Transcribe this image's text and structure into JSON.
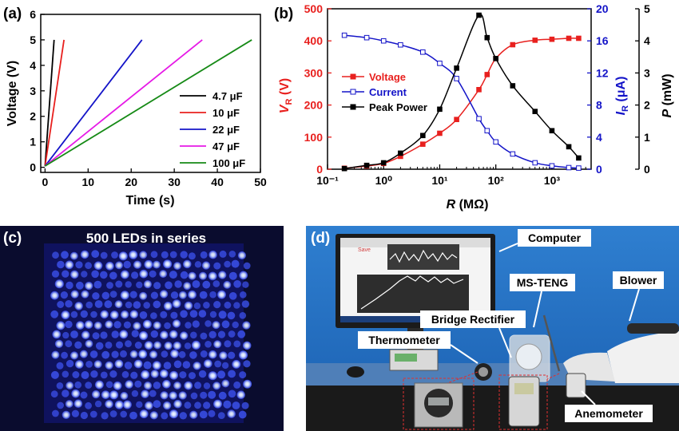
{
  "panels": {
    "a": "(a)",
    "b": "(b)",
    "c": "(c)",
    "d": "(d)"
  },
  "chart_data": [
    {
      "type": "line",
      "panel": "(a)",
      "xlabel": "Time (s)",
      "ylabel": "Voltage (V)",
      "xlim": [
        -1,
        50
      ],
      "ylim": [
        -0.2,
        6
      ],
      "xticks": [
        "0",
        "10",
        "20",
        "30",
        "40",
        "50"
      ],
      "yticks": [
        "0",
        "1",
        "2",
        "3",
        "4",
        "5",
        "6"
      ],
      "legend_position": "bottom-right",
      "series": [
        {
          "name": "4.7 μF",
          "color": "#000000",
          "x": [
            0,
            2.1
          ],
          "y": [
            0.05,
            5.0
          ]
        },
        {
          "name": "10 μF",
          "color": "#e8201e",
          "x": [
            0,
            4.4
          ],
          "y": [
            0.05,
            5.0
          ]
        },
        {
          "name": "22 μF",
          "color": "#1414c8",
          "x": [
            0,
            22.5
          ],
          "y": [
            0.05,
            5.0
          ]
        },
        {
          "name": "47 μF",
          "color": "#e619e6",
          "x": [
            0,
            36.5
          ],
          "y": [
            0.05,
            5.0
          ]
        },
        {
          "name": "100 μF",
          "color": "#168a16",
          "x": [
            0,
            48
          ],
          "y": [
            0.05,
            5.0
          ]
        }
      ]
    },
    {
      "type": "line",
      "panel": "(b)",
      "xlabel": "R (MΩ)",
      "xscale": "log",
      "xlim": [
        0.1,
        5000
      ],
      "xticks": [
        "10⁻¹",
        "10⁰",
        "10¹",
        "10²",
        "10³"
      ],
      "y_axes": [
        {
          "label": "V_R (V)",
          "color": "#e8201e",
          "lim": [
            0,
            500
          ],
          "ticks": [
            "0",
            "100",
            "200",
            "300",
            "400",
            "500"
          ]
        },
        {
          "label": "I_R (μA)",
          "color": "#1414c8",
          "lim": [
            0,
            20
          ],
          "ticks": [
            "0",
            "4",
            "8",
            "12",
            "16",
            "20"
          ]
        },
        {
          "label": "P (mW)",
          "color": "#000000",
          "lim": [
            0,
            5
          ],
          "ticks": [
            "0",
            "1",
            "2",
            "3",
            "4",
            "5"
          ]
        }
      ],
      "legend_position": "middle-left",
      "x": [
        0.2,
        0.5,
        1,
        2,
        5,
        10,
        20,
        50,
        70,
        100,
        200,
        500,
        1000,
        2000,
        3000
      ],
      "series": [
        {
          "name": "Voltage",
          "axis": 0,
          "color": "#e8201e",
          "marker": "filled-square",
          "values": [
            3,
            10,
            18,
            40,
            78,
            112,
            155,
            248,
            295,
            345,
            388,
            402,
            405,
            408,
            408
          ]
        },
        {
          "name": "Current",
          "axis": 1,
          "color": "#1414c8",
          "marker": "open-square",
          "values": [
            16.7,
            16.4,
            16.0,
            15.5,
            14.6,
            13.2,
            11.3,
            6.3,
            4.8,
            3.4,
            1.9,
            0.8,
            0.42,
            0.2,
            0.14
          ]
        },
        {
          "name": "Peak Power",
          "axis": 2,
          "color": "#000000",
          "marker": "filled-square",
          "values": [
            0.02,
            0.12,
            0.2,
            0.5,
            1.05,
            1.87,
            3.15,
            4.8,
            4.1,
            3.45,
            2.6,
            1.8,
            1.2,
            0.7,
            0.35
          ]
        }
      ]
    }
  ],
  "photo_c": {
    "title": "500 LEDs in series"
  },
  "photo_d": {
    "labels": {
      "computer": "Computer",
      "msteng": "MS-TENG",
      "blower": "Blower",
      "bridge": "Bridge Rectifier",
      "thermometer": "Thermometer",
      "anemometer": "Anemometer"
    },
    "screen_save": "Save"
  }
}
